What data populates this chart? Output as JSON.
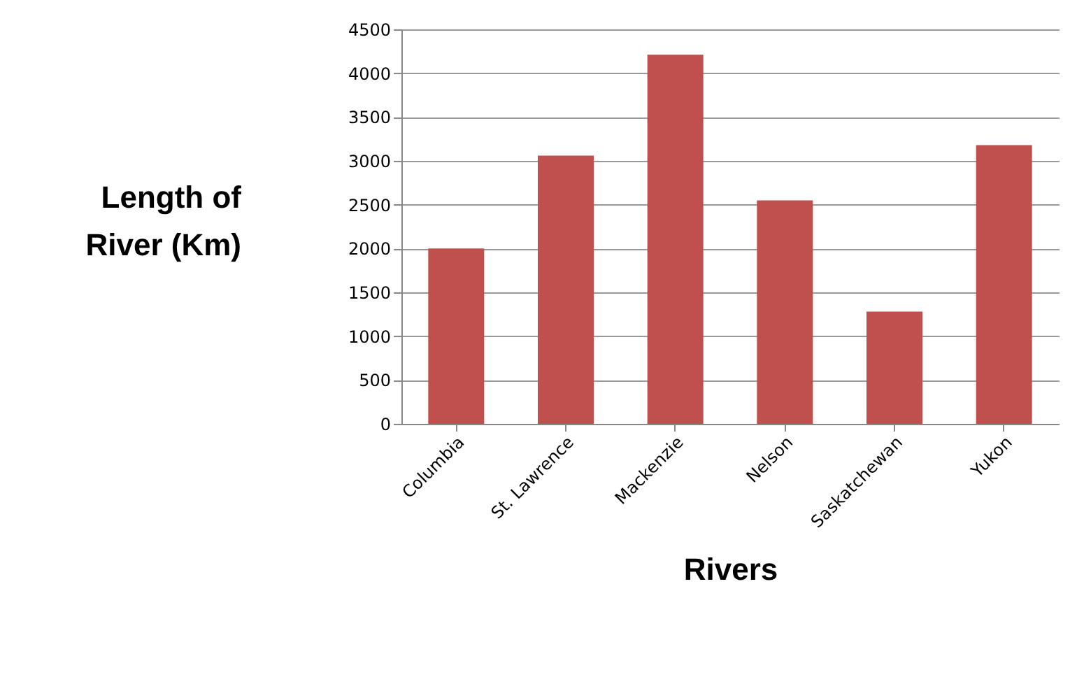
{
  "chart_data": {
    "type": "bar",
    "xlabel": "Rivers",
    "ylabel": "Length of\nRiver (Km)",
    "categories": [
      "Columbia",
      "St. Lawrence",
      "Mackenzie",
      "Nelson",
      "Saskatchewan",
      "Yukon"
    ],
    "values": [
      2000,
      3060,
      4210,
      2550,
      1280,
      3180
    ],
    "color": "#c0504d",
    "ylim": [
      0,
      4500
    ],
    "yticks": [
      0,
      500,
      1000,
      1500,
      2000,
      2500,
      3000,
      3500,
      4000,
      4500
    ],
    "grid": "y"
  }
}
